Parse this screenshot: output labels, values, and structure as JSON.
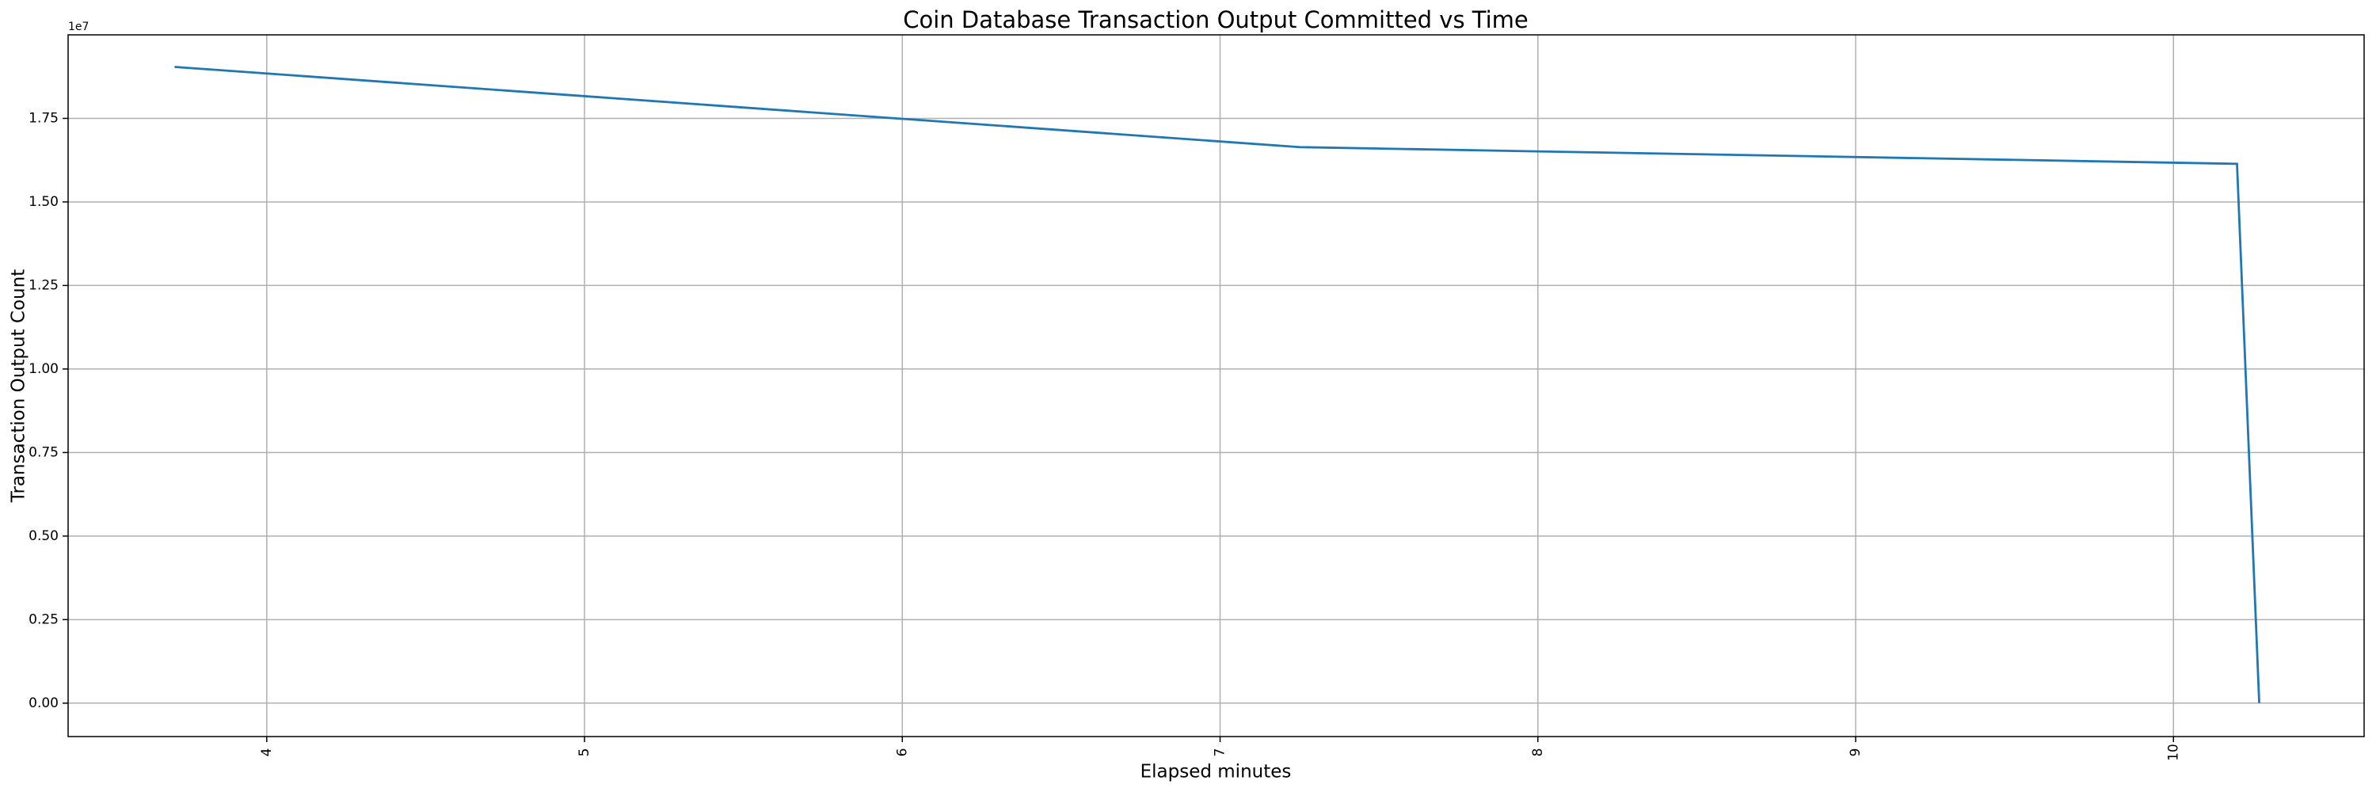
{
  "chart_data": {
    "type": "line",
    "title": "Coin Database Transaction Output Committed vs Time",
    "x_label": "Elapsed minutes",
    "y_label": "Transaction Output Count",
    "y_offset_label": "1e7",
    "x": [
      3.71,
      7.25,
      10.2,
      10.27
    ],
    "series": [
      {
        "name": "Transaction Output Count",
        "color": "#1f77b4",
        "values": [
          19040000,
          16640000,
          16140000,
          0
        ]
      }
    ],
    "xlim": [
      3.375,
      10.6
    ],
    "xticks": [
      4,
      5,
      6,
      7,
      8,
      9,
      10
    ],
    "ylim": [
      -1000000,
      20000000
    ],
    "yticks": [
      {
        "value": 0,
        "label": "0.00"
      },
      {
        "value": 2500000,
        "label": "0.25"
      },
      {
        "value": 5000000,
        "label": "0.50"
      },
      {
        "value": 7500000,
        "label": "0.75"
      },
      {
        "value": 10000000,
        "label": "1.00"
      },
      {
        "value": 12500000,
        "label": "1.25"
      },
      {
        "value": 15000000,
        "label": "1.50"
      },
      {
        "value": 17500000,
        "label": "1.75"
      }
    ],
    "grid": true
  }
}
